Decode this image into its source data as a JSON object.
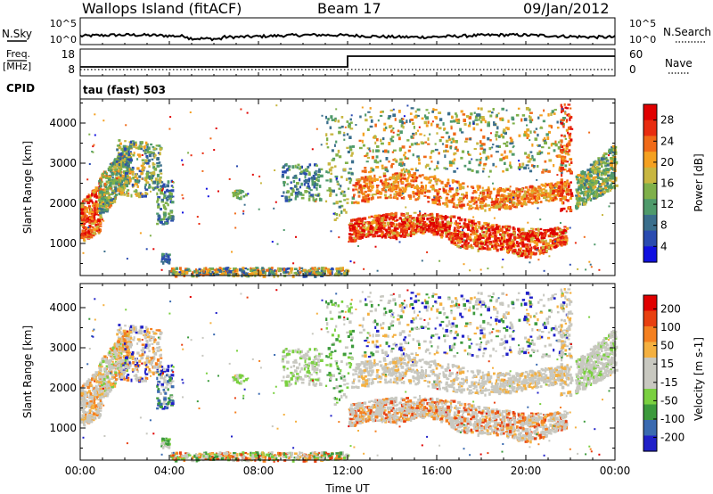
{
  "header": {
    "station": "Wallops Island (fitACF)",
    "beam": "Beam 17",
    "date": "09/Jan/2012"
  },
  "top_panels": {
    "nsky_label": "N.Sky",
    "nsky_ticks_left": [
      "10^5",
      "10^0"
    ],
    "nsearch_ticks_right": [
      "10^5",
      "10^0"
    ],
    "nsearch_label": "N.Search",
    "freq_label_1": "Freq.",
    "freq_label_2": "[MHz]",
    "freq_ticks": [
      "18",
      "8"
    ],
    "nave_ticks": [
      "60",
      "0"
    ],
    "nave_label": "Nave",
    "cpid_label": "CPID",
    "cpid_value": "tau (fast) 503"
  },
  "colors": {
    "power_scale": [
      "#1010e0",
      "#2a4bb0",
      "#3a6e8c",
      "#4f9a6b",
      "#7fb04a",
      "#c8b640",
      "#f4a020",
      "#f06a18",
      "#e82c10",
      "#e00000"
    ],
    "velocity_scale": [
      "#2020c8",
      "#3a6ab0",
      "#3c9a3c",
      "#7ad040",
      "#c8c8c0",
      "#c8c8c0",
      "#f4b040",
      "#f48020",
      "#e84010",
      "#e00000"
    ]
  },
  "chart_data": [
    {
      "type": "heatmap",
      "name": "power",
      "ylabel": "Slant Range [km]",
      "yticks": [
        "1000",
        "2000",
        "3000",
        "4000"
      ],
      "ylim": [
        200,
        4600
      ],
      "colorbar_label": "Power [dB]",
      "colorbar_ticks": [
        "28",
        "24",
        "20",
        "16",
        "12",
        "8",
        "4"
      ],
      "clim": [
        0,
        30
      ]
    },
    {
      "type": "heatmap",
      "name": "velocity",
      "ylabel": "Slant Range [km]",
      "yticks": [
        "1000",
        "2000",
        "3000",
        "4000"
      ],
      "ylim": [
        200,
        4600
      ],
      "colorbar_label": "Velocity [m s-1]",
      "colorbar_ticks": [
        "200",
        "100",
        "50",
        "15",
        "-15",
        "-50",
        "-100",
        "-200"
      ],
      "xlabel": "Time UT",
      "xticks": [
        "00:00",
        "04:00",
        "08:00",
        "12:00",
        "16:00",
        "20:00",
        "00:00"
      ],
      "xlim_hours": [
        0,
        24
      ]
    }
  ]
}
